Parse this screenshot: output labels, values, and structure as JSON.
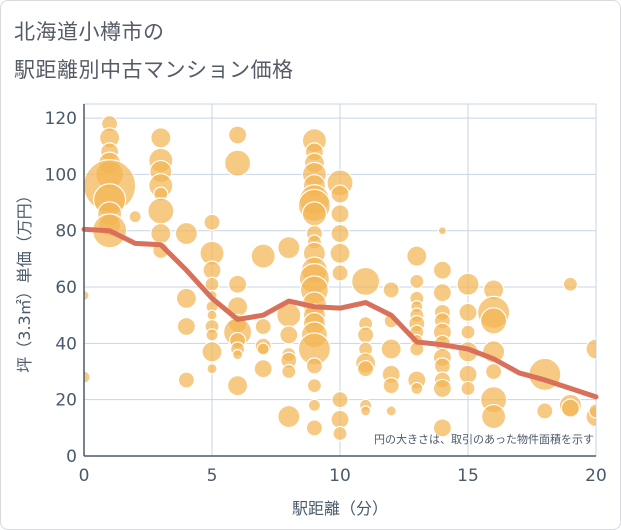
{
  "title": {
    "line1": "北海道小樽市の",
    "line2": "駅距離別中古マンション価格"
  },
  "colors": {
    "bubble": "#f2b553",
    "bubble_stroke": "#ffffff",
    "trend": "#d9705a",
    "grid": "#c8d4e4",
    "axis": "#4a5a6a"
  },
  "chart_data": {
    "type": "scatter",
    "xlabel": "駅距離（分）",
    "ylabel": "坪（3.3㎡）単価（万円）",
    "xlim": [
      0,
      20
    ],
    "ylim": [
      0,
      125
    ],
    "xticks": [
      0,
      5,
      10,
      15,
      20
    ],
    "yticks": [
      0,
      20,
      40,
      60,
      80,
      100,
      120
    ],
    "grid": true,
    "annotation": "円の大きさは、取引のあった物件面積を示す",
    "trend": {
      "x": [
        0,
        1,
        2,
        3,
        4,
        5,
        6,
        7,
        8,
        9,
        10,
        11,
        12,
        13,
        14,
        15,
        16,
        17,
        18,
        19,
        20
      ],
      "y": [
        80.5,
        80,
        75.5,
        75,
        66,
        56,
        48.5,
        50,
        55,
        53,
        52.5,
        54.5,
        50,
        40.5,
        39.5,
        38,
        34.5,
        29.5,
        27,
        24,
        21
      ]
    },
    "bubbles": [
      {
        "x": 0,
        "y": 57,
        "s": 5
      },
      {
        "x": 0,
        "y": 28,
        "s": 6
      },
      {
        "x": 1,
        "y": 118,
        "s": 8
      },
      {
        "x": 1,
        "y": 113,
        "s": 10
      },
      {
        "x": 1,
        "y": 108,
        "s": 9
      },
      {
        "x": 1,
        "y": 104,
        "s": 11
      },
      {
        "x": 1,
        "y": 100,
        "s": 14
      },
      {
        "x": 1,
        "y": 96,
        "s": 26
      },
      {
        "x": 1,
        "y": 91,
        "s": 16
      },
      {
        "x": 1,
        "y": 86,
        "s": 12
      },
      {
        "x": 1,
        "y": 82,
        "s": 11
      },
      {
        "x": 1,
        "y": 80,
        "s": 17
      },
      {
        "x": 2,
        "y": 85,
        "s": 6
      },
      {
        "x": 3,
        "y": 113,
        "s": 10
      },
      {
        "x": 3,
        "y": 105,
        "s": 12
      },
      {
        "x": 3,
        "y": 101,
        "s": 11
      },
      {
        "x": 3,
        "y": 96,
        "s": 12
      },
      {
        "x": 3,
        "y": 93,
        "s": 7
      },
      {
        "x": 3,
        "y": 87,
        "s": 13
      },
      {
        "x": 3,
        "y": 79,
        "s": 10
      },
      {
        "x": 3,
        "y": 73,
        "s": 8
      },
      {
        "x": 4,
        "y": 79,
        "s": 11
      },
      {
        "x": 4,
        "y": 56,
        "s": 10
      },
      {
        "x": 4,
        "y": 46,
        "s": 9
      },
      {
        "x": 4,
        "y": 27,
        "s": 8
      },
      {
        "x": 5,
        "y": 83,
        "s": 8
      },
      {
        "x": 5,
        "y": 72,
        "s": 12
      },
      {
        "x": 5,
        "y": 66,
        "s": 9
      },
      {
        "x": 5,
        "y": 61,
        "s": 7
      },
      {
        "x": 5,
        "y": 57,
        "s": 5
      },
      {
        "x": 5,
        "y": 53,
        "s": 6
      },
      {
        "x": 5,
        "y": 50,
        "s": 5
      },
      {
        "x": 5,
        "y": 46,
        "s": 7
      },
      {
        "x": 5,
        "y": 43,
        "s": 6
      },
      {
        "x": 5,
        "y": 37,
        "s": 10
      },
      {
        "x": 5,
        "y": 31,
        "s": 5
      },
      {
        "x": 6,
        "y": 114,
        "s": 9
      },
      {
        "x": 6,
        "y": 104,
        "s": 13
      },
      {
        "x": 6,
        "y": 61,
        "s": 9
      },
      {
        "x": 6,
        "y": 53,
        "s": 10
      },
      {
        "x": 6,
        "y": 47,
        "s": 9
      },
      {
        "x": 6,
        "y": 44,
        "s": 14
      },
      {
        "x": 6,
        "y": 41,
        "s": 8
      },
      {
        "x": 6,
        "y": 38,
        "s": 7
      },
      {
        "x": 6,
        "y": 36,
        "s": 5
      },
      {
        "x": 6,
        "y": 25,
        "s": 10
      },
      {
        "x": 7,
        "y": 71,
        "s": 12
      },
      {
        "x": 7,
        "y": 46,
        "s": 8
      },
      {
        "x": 7,
        "y": 39,
        "s": 8
      },
      {
        "x": 7,
        "y": 38,
        "s": 6
      },
      {
        "x": 7,
        "y": 31,
        "s": 9
      },
      {
        "x": 8,
        "y": 74,
        "s": 11
      },
      {
        "x": 8,
        "y": 50,
        "s": 12
      },
      {
        "x": 8,
        "y": 43,
        "s": 9
      },
      {
        "x": 8,
        "y": 36,
        "s": 7
      },
      {
        "x": 8,
        "y": 34,
        "s": 8
      },
      {
        "x": 8,
        "y": 30,
        "s": 7
      },
      {
        "x": 8,
        "y": 14,
        "s": 11
      },
      {
        "x": 9,
        "y": 112,
        "s": 12
      },
      {
        "x": 9,
        "y": 108,
        "s": 9
      },
      {
        "x": 9,
        "y": 104,
        "s": 10
      },
      {
        "x": 9,
        "y": 100,
        "s": 12
      },
      {
        "x": 9,
        "y": 96,
        "s": 11
      },
      {
        "x": 9,
        "y": 91,
        "s": 15
      },
      {
        "x": 9,
        "y": 89,
        "s": 16
      },
      {
        "x": 9,
        "y": 86,
        "s": 12
      },
      {
        "x": 9,
        "y": 79,
        "s": 8
      },
      {
        "x": 9,
        "y": 76,
        "s": 7
      },
      {
        "x": 9,
        "y": 72,
        "s": 11
      },
      {
        "x": 9,
        "y": 66,
        "s": 13
      },
      {
        "x": 9,
        "y": 63,
        "s": 15
      },
      {
        "x": 9,
        "y": 59,
        "s": 14
      },
      {
        "x": 9,
        "y": 54,
        "s": 12
      },
      {
        "x": 9,
        "y": 50,
        "s": 11
      },
      {
        "x": 9,
        "y": 47,
        "s": 11
      },
      {
        "x": 9,
        "y": 43,
        "s": 13
      },
      {
        "x": 9,
        "y": 38,
        "s": 16
      },
      {
        "x": 9,
        "y": 32,
        "s": 8
      },
      {
        "x": 9,
        "y": 25,
        "s": 7
      },
      {
        "x": 9,
        "y": 18,
        "s": 6
      },
      {
        "x": 9,
        "y": 10,
        "s": 8
      },
      {
        "x": 10,
        "y": 97,
        "s": 13
      },
      {
        "x": 10,
        "y": 93,
        "s": 9
      },
      {
        "x": 10,
        "y": 86,
        "s": 9
      },
      {
        "x": 10,
        "y": 79,
        "s": 9
      },
      {
        "x": 10,
        "y": 72,
        "s": 10
      },
      {
        "x": 10,
        "y": 65,
        "s": 8
      },
      {
        "x": 10,
        "y": 20,
        "s": 8
      },
      {
        "x": 10,
        "y": 13,
        "s": 9
      },
      {
        "x": 10,
        "y": 8,
        "s": 7
      },
      {
        "x": 11,
        "y": 62,
        "s": 14
      },
      {
        "x": 11,
        "y": 47,
        "s": 7
      },
      {
        "x": 11,
        "y": 43,
        "s": 8
      },
      {
        "x": 11,
        "y": 38,
        "s": 7
      },
      {
        "x": 11,
        "y": 33,
        "s": 10
      },
      {
        "x": 11,
        "y": 31,
        "s": 8
      },
      {
        "x": 11,
        "y": 18,
        "s": 6
      },
      {
        "x": 11,
        "y": 16,
        "s": 5
      },
      {
        "x": 12,
        "y": 59,
        "s": 8
      },
      {
        "x": 12,
        "y": 48,
        "s": 7
      },
      {
        "x": 12,
        "y": 38,
        "s": 10
      },
      {
        "x": 12,
        "y": 29,
        "s": 9
      },
      {
        "x": 12,
        "y": 25,
        "s": 8
      },
      {
        "x": 12,
        "y": 16,
        "s": 5
      },
      {
        "x": 13,
        "y": 71,
        "s": 10
      },
      {
        "x": 13,
        "y": 62,
        "s": 7
      },
      {
        "x": 13,
        "y": 56,
        "s": 7
      },
      {
        "x": 13,
        "y": 53,
        "s": 6
      },
      {
        "x": 13,
        "y": 50,
        "s": 7
      },
      {
        "x": 13,
        "y": 47,
        "s": 8
      },
      {
        "x": 13,
        "y": 44,
        "s": 7
      },
      {
        "x": 13,
        "y": 41,
        "s": 6
      },
      {
        "x": 13,
        "y": 38,
        "s": 7
      },
      {
        "x": 13,
        "y": 27,
        "s": 9
      },
      {
        "x": 13,
        "y": 24,
        "s": 6
      },
      {
        "x": 14,
        "y": 80,
        "s": 4
      },
      {
        "x": 14,
        "y": 66,
        "s": 9
      },
      {
        "x": 14,
        "y": 58,
        "s": 9
      },
      {
        "x": 14,
        "y": 51,
        "s": 8
      },
      {
        "x": 14,
        "y": 48,
        "s": 8
      },
      {
        "x": 14,
        "y": 44,
        "s": 9
      },
      {
        "x": 14,
        "y": 40,
        "s": 8
      },
      {
        "x": 14,
        "y": 35,
        "s": 9
      },
      {
        "x": 14,
        "y": 32,
        "s": 8
      },
      {
        "x": 14,
        "y": 27,
        "s": 8
      },
      {
        "x": 14,
        "y": 24,
        "s": 9
      },
      {
        "x": 14,
        "y": 10,
        "s": 9
      },
      {
        "x": 15,
        "y": 61,
        "s": 11
      },
      {
        "x": 15,
        "y": 51,
        "s": 9
      },
      {
        "x": 15,
        "y": 44,
        "s": 7
      },
      {
        "x": 15,
        "y": 37,
        "s": 10
      },
      {
        "x": 15,
        "y": 29,
        "s": 9
      },
      {
        "x": 15,
        "y": 24,
        "s": 7
      },
      {
        "x": 16,
        "y": 59,
        "s": 10
      },
      {
        "x": 16,
        "y": 51,
        "s": 16
      },
      {
        "x": 16,
        "y": 48,
        "s": 13
      },
      {
        "x": 16,
        "y": 37,
        "s": 11
      },
      {
        "x": 16,
        "y": 30,
        "s": 8
      },
      {
        "x": 16,
        "y": 20,
        "s": 13
      },
      {
        "x": 16,
        "y": 14,
        "s": 12
      },
      {
        "x": 18,
        "y": 29,
        "s": 16
      },
      {
        "x": 18,
        "y": 16,
        "s": 8
      },
      {
        "x": 19,
        "y": 61,
        "s": 7
      },
      {
        "x": 19,
        "y": 18,
        "s": 11
      },
      {
        "x": 19,
        "y": 17,
        "s": 9
      },
      {
        "x": 20,
        "y": 38,
        "s": 10
      },
      {
        "x": 20,
        "y": 14,
        "s": 10
      },
      {
        "x": 20,
        "y": 16,
        "s": 7
      }
    ]
  }
}
